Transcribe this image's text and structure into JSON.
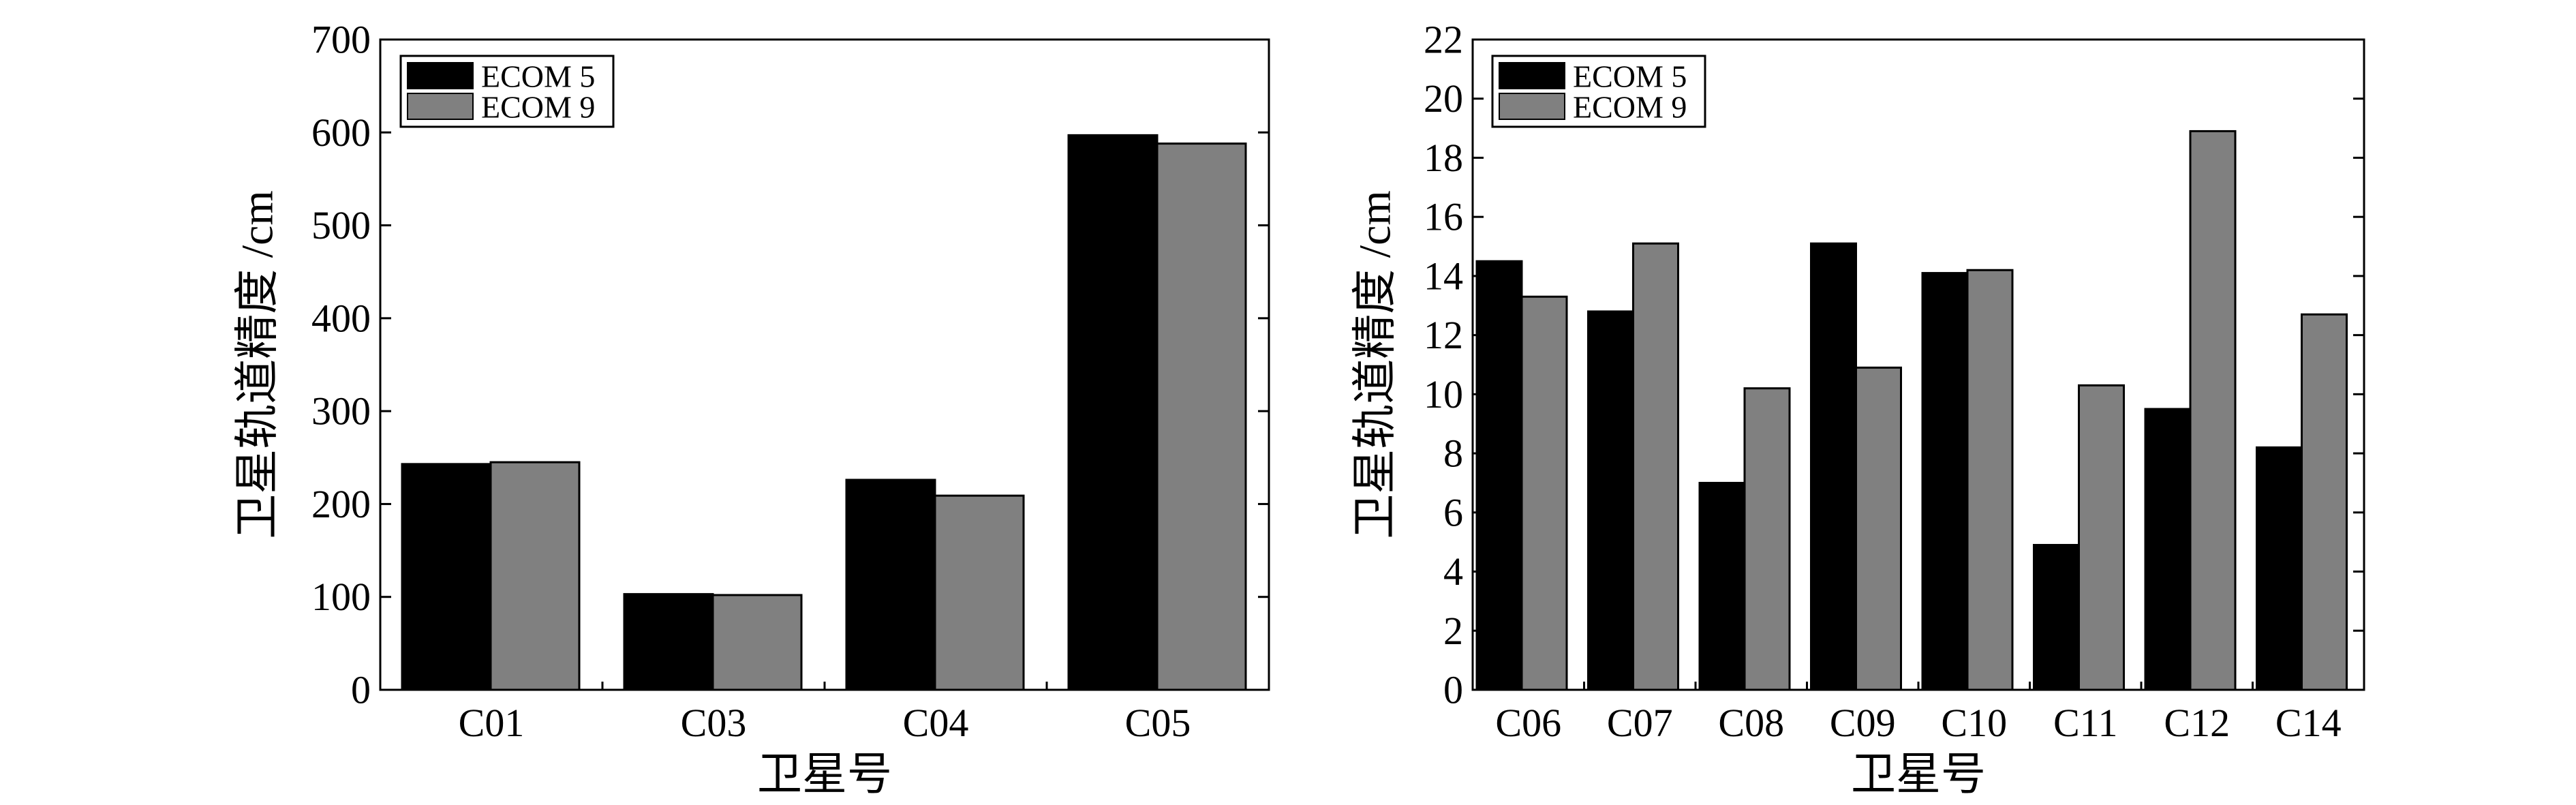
{
  "colors": {
    "series_1": "#000000",
    "series_2": "#808080",
    "background": "#ffffff",
    "axis": "#000000"
  },
  "chart_data": [
    {
      "type": "bar",
      "title": "",
      "xlabel": "卫星号",
      "ylabel": "卫星轨道精度 /cm",
      "categories": [
        "C01",
        "C03",
        "C04",
        "C05"
      ],
      "series": [
        {
          "name": "ECOM 5",
          "values": [
            243,
            103,
            226,
            597
          ]
        },
        {
          "name": "ECOM 9",
          "values": [
            245,
            102,
            209,
            588
          ]
        }
      ],
      "ylim": [
        0,
        700
      ],
      "yticks": [
        "0",
        "100",
        "200",
        "300",
        "400",
        "500",
        "600",
        "700"
      ],
      "legend": "top-left",
      "grid": false
    },
    {
      "type": "bar",
      "title": "",
      "xlabel": "卫星号",
      "ylabel": "卫星轨道精度 /cm",
      "categories": [
        "C06",
        "C07",
        "C08",
        "C09",
        "C10",
        "C11",
        "C12",
        "C14"
      ],
      "series": [
        {
          "name": "ECOM 5",
          "values": [
            14.5,
            12.8,
            7.0,
            15.1,
            14.1,
            4.9,
            9.5,
            8.2
          ]
        },
        {
          "name": "ECOM 9",
          "values": [
            13.3,
            15.1,
            10.2,
            10.9,
            14.2,
            10.3,
            18.9,
            12.7
          ]
        }
      ],
      "ylim": [
        0,
        22
      ],
      "yticks": [
        "0",
        "2",
        "4",
        "6",
        "8",
        "10",
        "12",
        "14",
        "16",
        "18",
        "20",
        "22"
      ],
      "legend": "top-left",
      "grid": false
    }
  ]
}
